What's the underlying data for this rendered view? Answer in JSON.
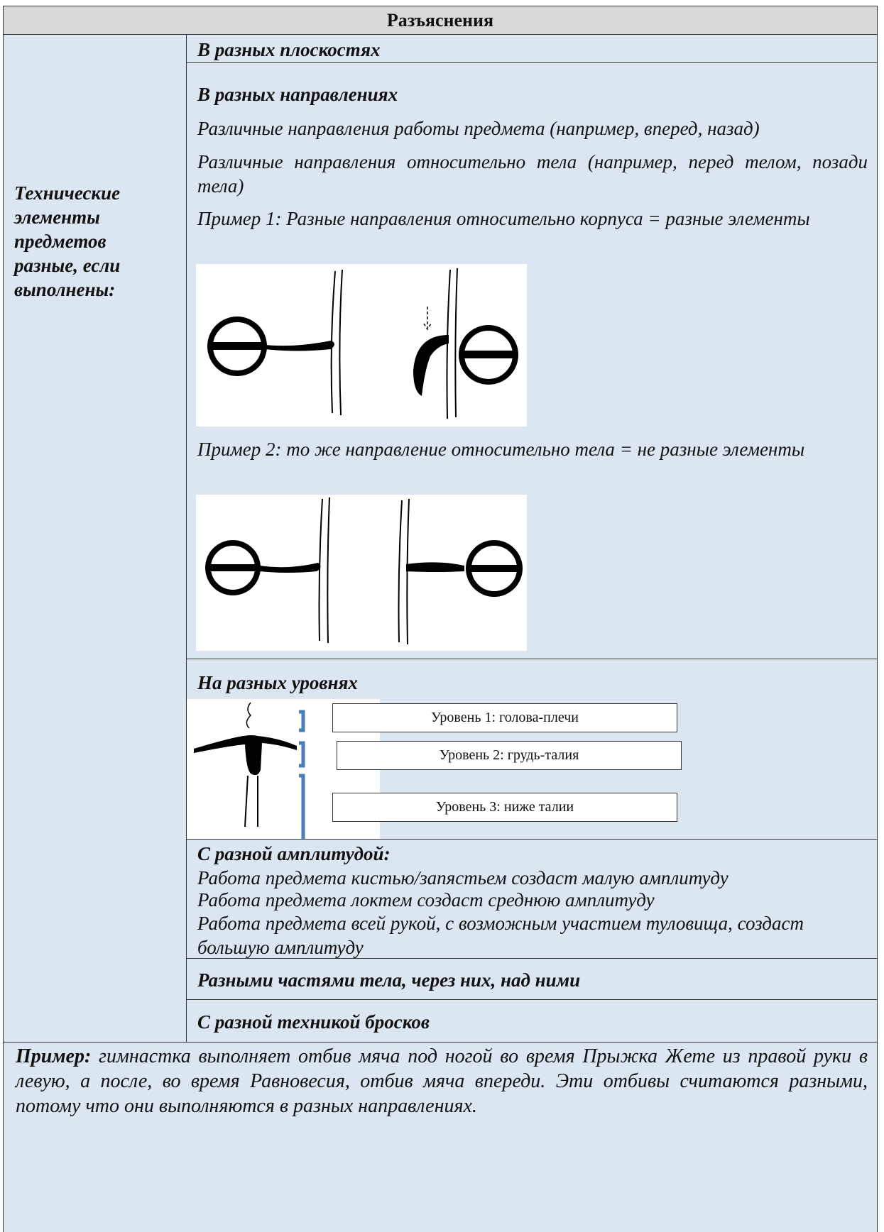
{
  "header": {
    "title": "Разъяснения"
  },
  "table": {
    "left_label": "Технические элементы предметов разные, если выполнены:",
    "rows": [
      {
        "heading": "В разных плоскостях"
      },
      {
        "heading": "В разных направлениях",
        "lines": [
          "Различные направления работы предмета (например, вперед, назад)",
          "Различные направления относительно тела (например, перед телом, позади тела)",
          "Пример 1: Разные направления относительно корпуса = разные элементы",
          "Пример 2: то же направление относительно тела = не разные элементы"
        ]
      },
      {
        "heading": "На разных уровнях",
        "levels": [
          "Уровень 1: голова-плечи",
          "Уровень 2: грудь-талия",
          "Уровень 3: ниже талии"
        ]
      },
      {
        "heading": "С разной амплитудой:",
        "lines": [
          "Работа предмета кистью/запястьем создаст малую амплитуду",
          "Работа предмета локтем создаст среднюю амплитуду",
          "Работа предмета всей рукой, с возможным участием туловища, создаст большую амплитуду"
        ]
      },
      {
        "heading": "Разными частями тела, через них, над ними"
      },
      {
        "heading": "С разной техникой бросков"
      }
    ]
  },
  "footer": {
    "label": "Пример:",
    "text": "гимнастка выполняет отбив мяча под ногой во время Прыжка Жете из правой руки в левую, а после, во время Равновесия, отбив мяча впереди. Эти отбивы считаются разными, потому что они выполняются в разных направлениях."
  }
}
